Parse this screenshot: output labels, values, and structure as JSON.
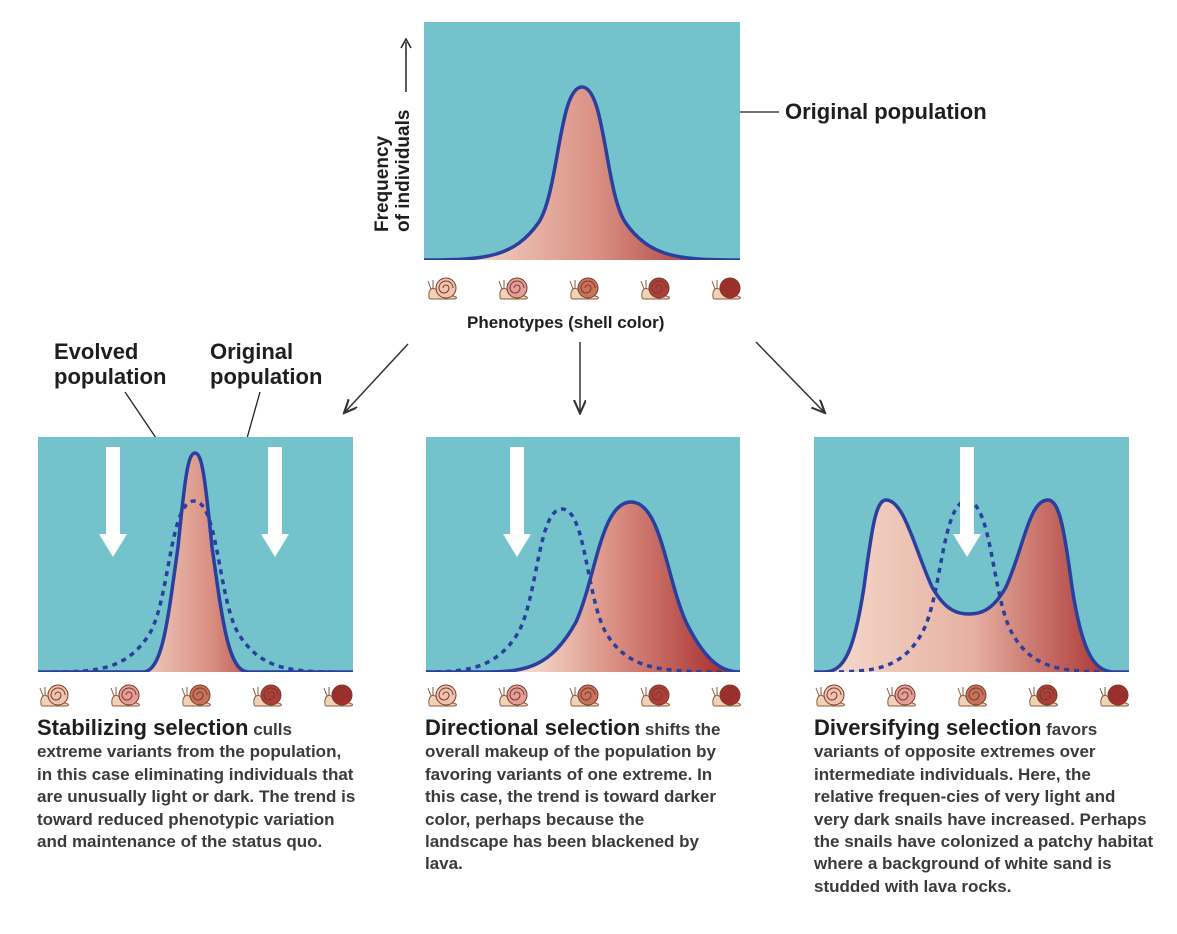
{
  "top": {
    "y_axis_label_line1": "Frequency",
    "y_axis_label_line2": "of individuals",
    "callout": "Original population",
    "x_axis_label": "Phenotypes (shell color)"
  },
  "left_callouts": {
    "evolved_line1": "Evolved",
    "evolved_line2": "population",
    "original_line1": "Original",
    "original_line2": "population"
  },
  "captions": {
    "stabilizing": {
      "head": "Stabilizing selection",
      "body": " culls extreme variants from the population, in this case eliminating individuals that are unusually light or dark. The trend is toward reduced phenotypic variation and maintenance of the status quo."
    },
    "directional": {
      "head": "Directional selection",
      "body": " shifts the overall makeup of the population by favoring variants of one extreme. In this case, the trend is toward darker color, perhaps because the landscape has been blackened by lava."
    },
    "diversifying": {
      "head": "Diversifying selection",
      "body": " favors variants of opposite extremes over intermediate individuals. Here, the relative frequen-cies of very light and very dark snails have increased. Perhaps the snails have colonized a patchy habitat where a background of white sand is studded with lava rocks."
    }
  },
  "snail_colors": [
    "#f1c4b2",
    "#e3a09a",
    "#c9725c",
    "#ad3f3a",
    "#a32d2d"
  ],
  "colors": {
    "panel_bg": "#74c2cb",
    "curve": "#2a3f9e",
    "fill_light": "#f2d4c6",
    "fill_dark": "#ab3c38"
  }
}
